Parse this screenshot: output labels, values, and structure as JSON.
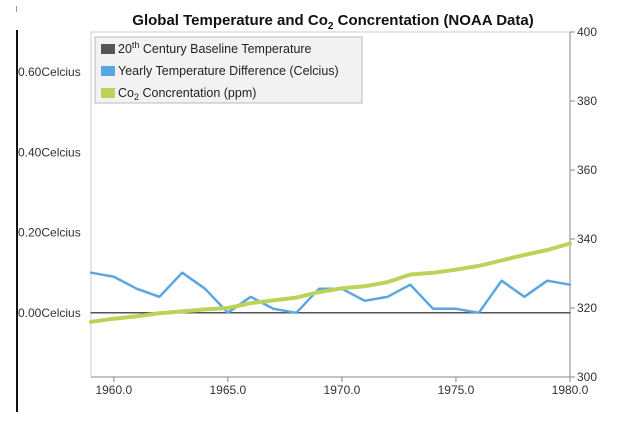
{
  "chart_data": {
    "type": "line",
    "title_parts": {
      "main": "Global Temperature and Co",
      "sub": "2",
      "rest": " Concrentation (NOAA Data)"
    },
    "x": [
      1959,
      1960,
      1961,
      1962,
      1963,
      1964,
      1965,
      1966,
      1967,
      1968,
      1969,
      1970,
      1971,
      1972,
      1973,
      1974,
      1975,
      1976,
      1977,
      1978,
      1979,
      1980
    ],
    "xlim": [
      1959,
      1980
    ],
    "x_ticks": [
      {
        "value": 1960,
        "label": "1960.0"
      },
      {
        "value": 1965,
        "label": "1965.0"
      },
      {
        "value": 1970,
        "label": "1970.0"
      },
      {
        "value": 1975,
        "label": "1975.0"
      },
      {
        "value": 1980,
        "label": "1980.0"
      }
    ],
    "y_left": {
      "lim": [
        -0.16,
        0.7
      ],
      "ticks": [
        {
          "value": 0.0,
          "label": "0.00Celcius"
        },
        {
          "value": 0.2,
          "label": "0.20Celcius"
        },
        {
          "value": 0.4,
          "label": "0.40Celcius"
        },
        {
          "value": 0.6,
          "label": "0.60Celcius"
        }
      ]
    },
    "y_right": {
      "lim": [
        300,
        400
      ],
      "ticks": [
        {
          "value": 300,
          "label": "300"
        },
        {
          "value": 320,
          "label": "320"
        },
        {
          "value": 340,
          "label": "340"
        },
        {
          "value": 360,
          "label": "360"
        },
        {
          "value": 380,
          "label": "380"
        },
        {
          "value": 400,
          "label": "400"
        }
      ]
    },
    "series": [
      {
        "name_parts": {
          "main": "20",
          "sup": "th",
          "rest": " Century Baseline Temperature"
        },
        "axis": "left",
        "color": "#555555",
        "values": [
          0,
          0,
          0,
          0,
          0,
          0,
          0,
          0,
          0,
          0,
          0,
          0,
          0,
          0,
          0,
          0,
          0,
          0,
          0,
          0,
          0,
          0
        ]
      },
      {
        "name": "Yearly Temperature Difference (Celcius)",
        "axis": "left",
        "color": "#5aa6e0",
        "values": [
          0.1,
          0.09,
          0.06,
          0.04,
          0.1,
          0.06,
          0.0,
          0.04,
          0.01,
          0.0,
          0.06,
          0.06,
          0.03,
          0.04,
          0.07,
          0.01,
          0.01,
          0.0,
          0.08,
          0.04,
          0.08,
          0.07
        ]
      },
      {
        "name_parts": {
          "main": "Co",
          "sub": "2",
          "rest": " Concrentation (ppm)"
        },
        "axis": "right",
        "color": "#bcd35a",
        "values": [
          316.0,
          316.9,
          317.6,
          318.5,
          319.0,
          319.6,
          320.0,
          321.4,
          322.2,
          323.0,
          324.6,
          325.7,
          326.3,
          327.5,
          329.7,
          330.2,
          331.1,
          332.2,
          333.8,
          335.4,
          336.8,
          338.7
        ]
      }
    ],
    "legend_position": "top-left",
    "grid": false
  }
}
